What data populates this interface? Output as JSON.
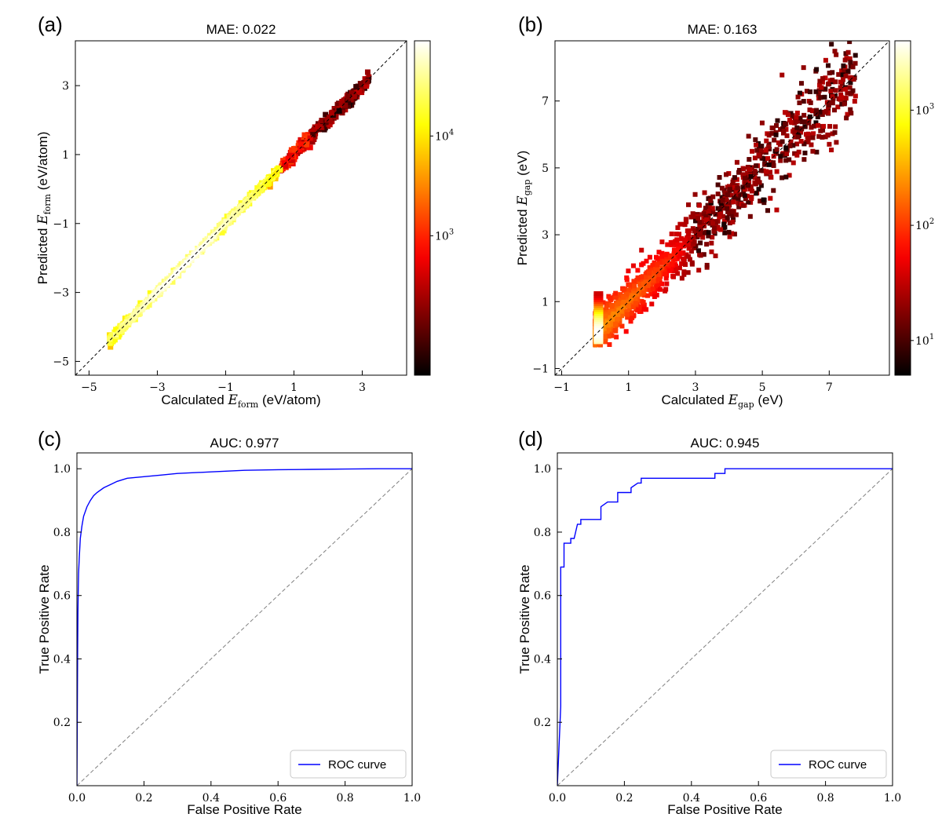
{
  "chart_data": [
    {
      "id": "a",
      "panel_label": "(a)",
      "type": "heatmap",
      "title": "MAE: 0.022",
      "xlabel": {
        "pre": "Calculated ",
        "sym": "E",
        "sub": "form",
        "post": " (eV/atom)"
      },
      "ylabel": {
        "pre": "Predicted ",
        "sym": "E",
        "sub": "form",
        "post": " (eV/atom)"
      },
      "xlim": [
        -5.4,
        4.3
      ],
      "ylim": [
        -5.4,
        4.3
      ],
      "xticks": [
        -5,
        -3,
        -1,
        1,
        3
      ],
      "yticks": [
        -5,
        -3,
        -1,
        1,
        3
      ],
      "diagonal": true,
      "colorbar": {
        "scale": "log",
        "min": 40,
        "max": 90000,
        "ticks": [
          {
            "v": 1000,
            "label": "10",
            "exp": "3"
          },
          {
            "v": 10000,
            "label": "10",
            "exp": "4"
          }
        ]
      },
      "colormap": "hot",
      "density": {
        "x_range": [
          -4.4,
          3.2
        ],
        "spread": 0.06,
        "peak_x": -2.2,
        "max_count": 90000
      }
    },
    {
      "id": "b",
      "panel_label": "(b)",
      "type": "heatmap",
      "title": "MAE: 0.163",
      "xlabel": {
        "pre": "Calculated ",
        "sym": "E",
        "sub": "gap",
        "post": " (eV)"
      },
      "ylabel": {
        "pre": "Predicted ",
        "sym": "E",
        "sub": "gap",
        "post": " (eV)"
      },
      "xlim": [
        -1.2,
        8.8
      ],
      "ylim": [
        -1.2,
        8.8
      ],
      "xticks": [
        -1,
        1,
        3,
        5,
        7
      ],
      "yticks": [
        -1,
        1,
        3,
        5,
        7
      ],
      "diagonal": true,
      "colorbar": {
        "scale": "log",
        "min": 5,
        "max": 4000,
        "ticks": [
          {
            "v": 10,
            "label": "10",
            "exp": "1"
          },
          {
            "v": 100,
            "label": "10",
            "exp": "2"
          },
          {
            "v": 1000,
            "label": "10",
            "exp": "3"
          }
        ]
      },
      "colormap": "hot",
      "density": {
        "x_range": [
          0,
          7.8
        ],
        "spread": 0.45,
        "peak_x": 0.1,
        "max_count": 4000
      }
    },
    {
      "id": "c",
      "panel_label": "(c)",
      "type": "line",
      "title": "AUC: 0.977",
      "xlabel": "False Positive Rate",
      "ylabel": "True Positive Rate",
      "xlim": [
        0,
        1
      ],
      "ylim": [
        0,
        1.05
      ],
      "xticks": [
        "0.0",
        "0.2",
        "0.4",
        "0.6",
        "0.8",
        "1.0"
      ],
      "yticks": [
        "0.2",
        "0.4",
        "0.6",
        "0.8",
        "1.0"
      ],
      "legend": {
        "label": "ROC curve",
        "position": "lower right"
      },
      "series": [
        {
          "name": "ROC curve",
          "color": "#0000ff",
          "x": [
            0,
            0.002,
            0.003,
            0.004,
            0.005,
            0.007,
            0.01,
            0.015,
            0.02,
            0.03,
            0.04,
            0.05,
            0.06,
            0.08,
            0.1,
            0.12,
            0.15,
            0.2,
            0.25,
            0.3,
            0.4,
            0.5,
            0.6,
            0.7,
            0.8,
            0.9,
            1.0
          ],
          "y": [
            0,
            0.43,
            0.55,
            0.62,
            0.67,
            0.72,
            0.78,
            0.82,
            0.85,
            0.88,
            0.9,
            0.915,
            0.925,
            0.94,
            0.95,
            0.96,
            0.97,
            0.975,
            0.98,
            0.985,
            0.99,
            0.995,
            0.997,
            0.998,
            0.999,
            1.0,
            1.0
          ]
        }
      ]
    },
    {
      "id": "d",
      "panel_label": "(d)",
      "type": "line",
      "title": "AUC: 0.945",
      "xlabel": "False Positive Rate",
      "ylabel": "True Positive Rate",
      "xlim": [
        0,
        1
      ],
      "ylim": [
        0,
        1.05
      ],
      "xticks": [
        "0.0",
        "0.2",
        "0.4",
        "0.6",
        "0.8",
        "1.0"
      ],
      "yticks": [
        "0.2",
        "0.4",
        "0.6",
        "0.8",
        "1.0"
      ],
      "legend": {
        "label": "ROC curve",
        "position": "lower right"
      },
      "series": [
        {
          "name": "ROC curve",
          "color": "#0000ff",
          "step": true,
          "x": [
            0,
            0.01,
            0.01,
            0.015,
            0.02,
            0.02,
            0.025,
            0.04,
            0.04,
            0.05,
            0.06,
            0.07,
            0.07,
            0.08,
            0.13,
            0.13,
            0.15,
            0.18,
            0.18,
            0.2,
            0.22,
            0.22,
            0.24,
            0.25,
            0.25,
            0.47,
            0.47,
            0.5,
            0.5,
            1.0
          ],
          "y": [
            0,
            0.25,
            0.69,
            0.69,
            0.69,
            0.765,
            0.765,
            0.765,
            0.78,
            0.78,
            0.825,
            0.825,
            0.84,
            0.84,
            0.84,
            0.88,
            0.895,
            0.895,
            0.925,
            0.925,
            0.925,
            0.94,
            0.955,
            0.955,
            0.97,
            0.97,
            0.985,
            0.985,
            1.0,
            1.0
          ]
        }
      ]
    }
  ]
}
